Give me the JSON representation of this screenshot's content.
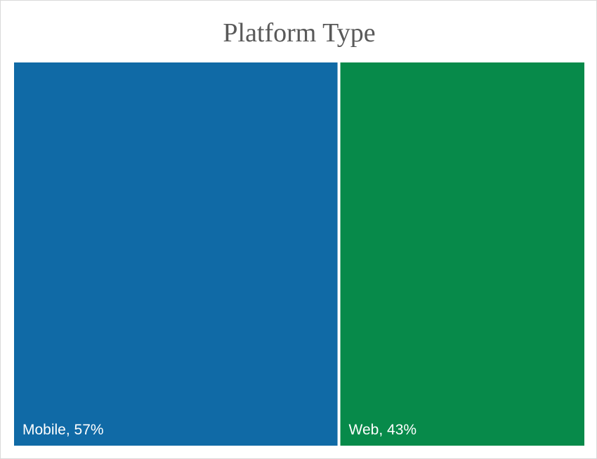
{
  "chart_data": {
    "type": "treemap",
    "title": "Platform Type",
    "categories": [
      "Mobile",
      "Web"
    ],
    "values": [
      57,
      43
    ],
    "unit": "%",
    "labels": [
      "Mobile, 57%",
      "Web, 43%"
    ],
    "colors": [
      "#106aa6",
      "#078a4a"
    ],
    "legend": "none",
    "grid": false
  }
}
